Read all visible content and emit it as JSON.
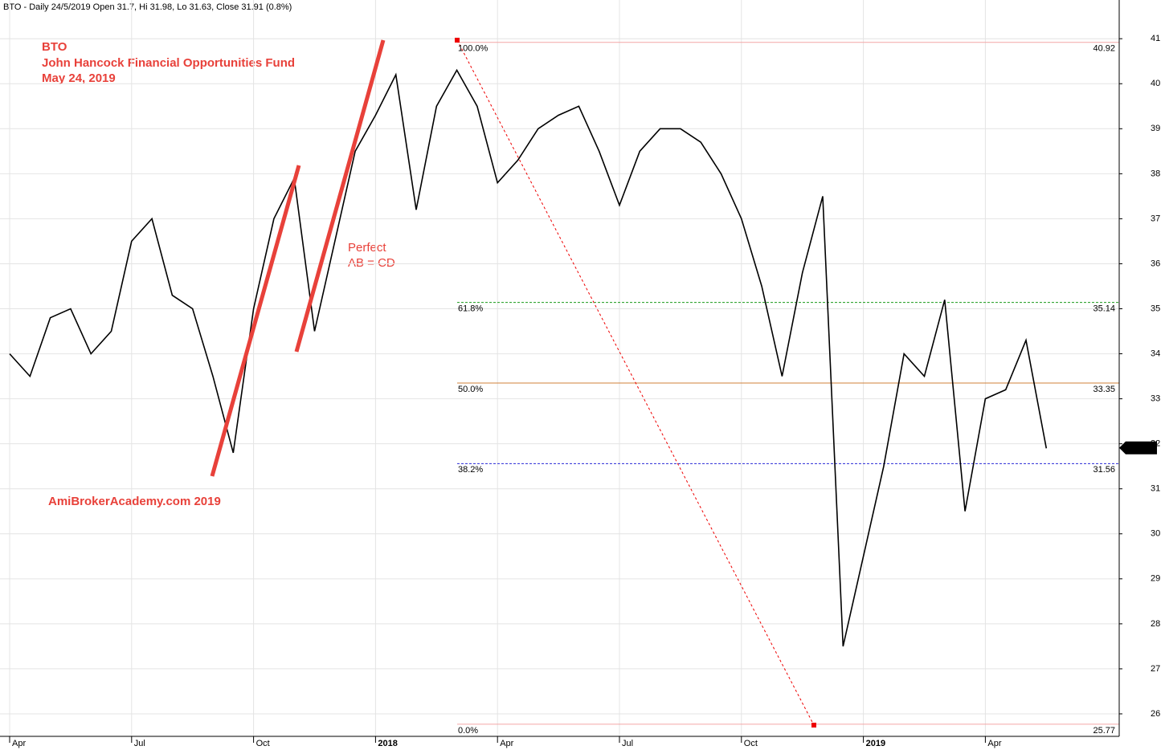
{
  "chart_data": {
    "type": "line",
    "title": "BTO - Daily 24/5/2019 Open 31.7, Hi 31.98, Lo 31.63, Close 31.91 (0.8%)",
    "annotations": [
      "BTO",
      "John Hancock Financial Opportunities Fund",
      "May 24, 2019",
      "Perfect",
      "AB = CD",
      "AmiBrokerAcademy.com  2019"
    ],
    "categories": [
      "Apr",
      null,
      null,
      null,
      null,
      null,
      "Jul",
      null,
      null,
      null,
      null,
      null,
      "Oct",
      null,
      null,
      null,
      null,
      null,
      "2018",
      null,
      null,
      null,
      null,
      null,
      "Apr",
      null,
      null,
      null,
      null,
      null,
      "Jul",
      null,
      null,
      null,
      null,
      null,
      "Oct",
      null,
      null,
      null,
      null,
      null,
      "2019",
      null,
      null,
      null,
      null,
      null,
      "Apr",
      null,
      null,
      null
    ],
    "values": [
      34.0,
      33.5,
      34.8,
      35.0,
      34.0,
      34.5,
      36.5,
      37.0,
      35.3,
      35.0,
      33.5,
      31.8,
      35.0,
      37.0,
      37.9,
      34.5,
      36.5,
      38.5,
      39.3,
      40.2,
      37.2,
      39.5,
      40.3,
      39.5,
      37.8,
      38.3,
      39.0,
      39.3,
      39.5,
      38.5,
      37.3,
      38.5,
      39.0,
      39.0,
      38.7,
      38.0,
      37.0,
      35.5,
      33.5,
      35.8,
      37.5,
      27.5,
      29.5,
      31.5,
      34.0,
      33.5,
      35.2,
      30.5,
      33.0,
      33.2,
      34.3,
      31.9
    ],
    "color": "#000000",
    "ylim": [
      25.5,
      41.86
    ],
    "yticks": [
      26,
      27,
      28,
      29,
      30,
      31,
      32,
      33,
      34,
      35,
      36,
      37,
      38,
      39,
      40,
      41
    ],
    "grid": true,
    "last_price": 31.91,
    "fib_levels": [
      {
        "label": "100.0%",
        "value": 40.92,
        "color": "#f4a6a6",
        "dash": false
      },
      {
        "label": "61.8%",
        "value": 35.14,
        "color": "#1a9a1a",
        "dash": true
      },
      {
        "label": "50.0%",
        "value": 33.35,
        "color": "#d2803a",
        "dash": false
      },
      {
        "label": "38.2%",
        "value": 31.56,
        "color": "#2a2ad8",
        "dash": true
      },
      {
        "label": "0.0%",
        "value": 25.77,
        "color": "#f4a6a6",
        "dash": false
      }
    ]
  }
}
